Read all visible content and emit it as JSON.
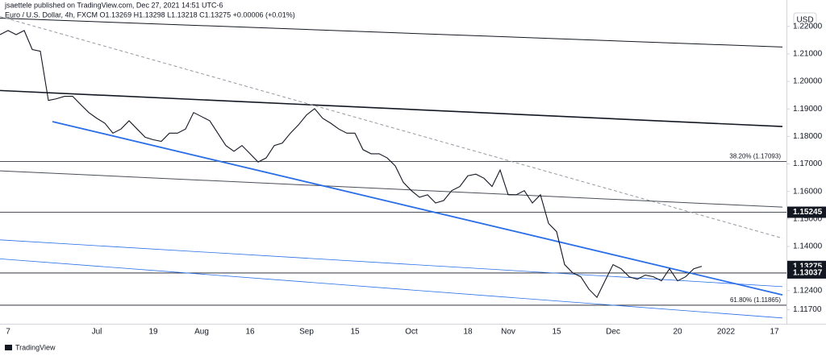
{
  "header": {
    "publisher": "jsaettele published on TradingView.com, Dec 27, 2021 14:51 UTC-6",
    "symbol": "Euro / U.S. Dollar, 4h, FXCM  O1.13269 H1.13298 L1.13218 C1.13275 +0.00006 (+0.01%)"
  },
  "footer": {
    "brand": "TradingView"
  },
  "chart_data": {
    "type": "line",
    "currency": "USD",
    "color": "#131722",
    "categories": [
      null,
      "7",
      null,
      null,
      null,
      null,
      null,
      null,
      null,
      null,
      null,
      null,
      "Jul",
      null,
      null,
      null,
      null,
      null,
      null,
      "19",
      null,
      null,
      null,
      null,
      null,
      "Aug",
      null,
      null,
      null,
      null,
      null,
      "16",
      null,
      null,
      null,
      null,
      null,
      null,
      "Sep",
      null,
      null,
      null,
      null,
      null,
      "15",
      null,
      null,
      null,
      null,
      null,
      null,
      "Oct",
      null,
      null,
      null,
      null,
      null,
      null,
      "18",
      null,
      null,
      null,
      null,
      "Nov",
      null,
      null,
      null,
      null,
      null,
      "15",
      null,
      null,
      null,
      null,
      null,
      null,
      "Dec",
      null,
      null,
      null,
      null,
      null,
      null,
      null,
      "20",
      null,
      null,
      null,
      null,
      null,
      "2022",
      null,
      null,
      null,
      null,
      null,
      "17",
      null
    ],
    "values": [
      1.217,
      1.2185,
      1.217,
      1.2185,
      1.2116,
      1.211,
      1.1931,
      1.1937,
      1.1946,
      1.1946,
      1.1916,
      1.1887,
      1.1866,
      1.1848,
      1.1812,
      1.1827,
      1.1857,
      1.1827,
      1.1797,
      1.1788,
      1.1782,
      1.1812,
      1.1812,
      1.1827,
      1.1887,
      1.1872,
      1.1857,
      1.1812,
      1.1767,
      1.1746,
      1.1767,
      1.1737,
      1.1707,
      1.1722,
      1.1767,
      1.1776,
      1.1812,
      1.1842,
      1.1878,
      1.1901,
      1.1866,
      1.1848,
      1.1827,
      1.1812,
      1.1812,
      1.1752,
      1.1737,
      1.1737,
      1.1722,
      1.1693,
      1.1633,
      1.1603,
      1.1579,
      1.1588,
      1.1558,
      1.1567,
      1.1603,
      1.1618,
      1.1657,
      1.1663,
      1.1648,
      1.1618,
      1.1678,
      1.1588,
      1.1588,
      1.1603,
      1.1558,
      1.1588,
      1.1484,
      1.1454,
      1.1334,
      1.1304,
      1.129,
      1.1245,
      1.1215,
      1.1275,
      1.1334,
      1.1319,
      1.129,
      1.1281,
      1.1296,
      1.129,
      1.1275,
      1.1319,
      1.1275,
      1.129,
      1.1319,
      1.1328,
      null,
      null,
      null,
      null,
      null,
      null,
      null,
      null,
      null,
      null
    ],
    "ylim": [
      1.1119,
      1.2296
    ],
    "yticks": [
      {
        "value": 1.22,
        "label": "1.22000"
      },
      {
        "value": 1.21,
        "label": "1.21000"
      },
      {
        "value": 1.2,
        "label": "1.20000"
      },
      {
        "value": 1.19,
        "label": "1.19000"
      },
      {
        "value": 1.18,
        "label": "1.18000"
      },
      {
        "value": 1.17,
        "label": "1.17000"
      },
      {
        "value": 1.16,
        "label": "1.16000"
      },
      {
        "value": 1.15,
        "label": "1.15000"
      },
      {
        "value": 1.14,
        "label": "1.14000"
      },
      {
        "value": 1.124,
        "label": "1.12400"
      },
      {
        "value": 1.117,
        "label": "1.11700"
      }
    ],
    "trendlines": [
      {
        "x": [
          0,
          97
        ],
        "y": [
          1.223,
          1.2125
        ],
        "color": "#131722",
        "width": 1
      },
      {
        "x": [
          0,
          97
        ],
        "y": [
          1.1967,
          1.1836
        ],
        "color": "#131722",
        "width": 1.6
      },
      {
        "x": [
          0,
          97
        ],
        "y": [
          1.2236,
          1.143
        ],
        "color": "#9598a1",
        "width": 1,
        "dashed": true
      },
      {
        "x": [
          0,
          97
        ],
        "y": [
          1.1675,
          1.1543
        ],
        "color": "#4a4e59",
        "width": 1
      },
      {
        "x": [
          6.5,
          97
        ],
        "y": [
          1.1854,
          1.1224
        ],
        "color": "#2a6ee8",
        "width": 1.8
      },
      {
        "x": [
          0,
          97
        ],
        "y": [
          1.1424,
          1.1254
        ],
        "color": "#2a6ee8",
        "width": 0.8
      },
      {
        "x": [
          0,
          97
        ],
        "y": [
          1.1355,
          1.114
        ],
        "color": "#2a6ee8",
        "width": 0.8
      }
    ],
    "horizontal_lines": [
      {
        "value": 1.17093,
        "label": "38.20% (1.17093)"
      },
      {
        "value": 1.15245
      },
      {
        "value": 1.13037
      },
      {
        "value": 1.11865,
        "label": "61.80% (1.11865)"
      }
    ],
    "price_tags": [
      1.15245,
      1.13275,
      1.13037
    ]
  }
}
